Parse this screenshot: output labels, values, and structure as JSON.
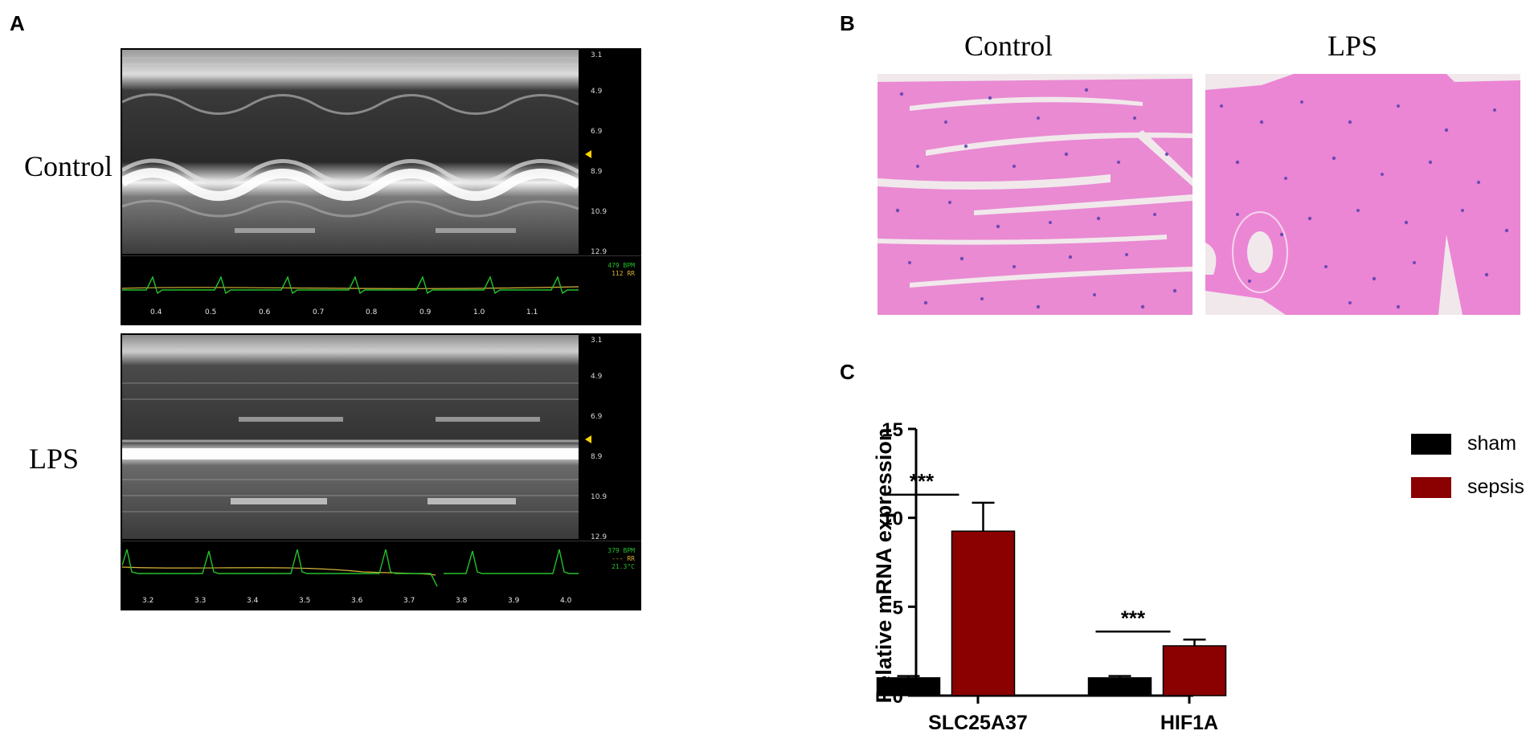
{
  "panel_a": {
    "letter": "A",
    "control": {
      "label": "Control",
      "depth_ticks": [
        "3.1",
        "4.9",
        "6.9",
        "8.9",
        "10.9",
        "12.9"
      ],
      "time_ticks": [
        "0.4",
        "0.5",
        "0.6",
        "0.7",
        "0.8",
        "0.9",
        "1.0",
        "1.1"
      ],
      "readout": [
        "479 BPM",
        "112 RR"
      ]
    },
    "lps": {
      "label": "LPS",
      "depth_ticks": [
        "3.1",
        "4.9",
        "6.9",
        "8.9",
        "10.9",
        "12.9"
      ],
      "time_ticks": [
        "3.2",
        "3.3",
        "3.4",
        "3.5",
        "3.6",
        "3.7",
        "3.8",
        "3.9",
        "4.0"
      ],
      "readout": [
        "379 BPM",
        "--- RR",
        "21.3°C"
      ]
    },
    "colors": {
      "ecg_trace": "#22c22a",
      "resp_trace": "#d9b23a",
      "marker": "#ffd400"
    }
  },
  "panel_b": {
    "letter": "B",
    "control_label": "Control",
    "lps_label": "LPS",
    "colors": {
      "tissue": "#e87fcf",
      "nuclei": "#4a3a9e",
      "gap": "#ece4e8"
    }
  },
  "panel_c": {
    "letter": "C",
    "legend": [
      {
        "label": "sham",
        "color": "#000000"
      },
      {
        "label": "sepsis",
        "color": "#8b0000"
      }
    ],
    "chart_data": {
      "type": "bar",
      "categories": [
        "SLC25A37",
        "HIF1A"
      ],
      "series": [
        {
          "name": "sham",
          "values": [
            1.0,
            1.0
          ],
          "errors": [
            0.1,
            0.1
          ],
          "color": "#000000"
        },
        {
          "name": "sepsis",
          "values": [
            9.25,
            2.8
          ],
          "errors": [
            1.6,
            0.35
          ],
          "color": "#8b0000"
        }
      ],
      "ylabel": "Relative mRNA expression",
      "ylim": [
        0,
        15
      ],
      "yticks": [
        0,
        5,
        10,
        15
      ],
      "significance": [
        "***",
        "***"
      ],
      "grid": false,
      "legend_position": "right"
    }
  }
}
